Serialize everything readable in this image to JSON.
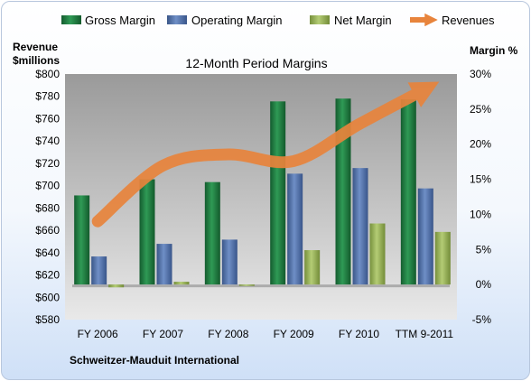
{
  "chart_data": {
    "type": "bar",
    "title": "12-Month Period Margins",
    "footer": "Schweitzer-Mauduit International",
    "categories": [
      "FY 2006",
      "FY 2007",
      "FY 2008",
      "FY 2009",
      "FY 2010",
      "TTM 9-2011"
    ],
    "y_left": {
      "label_line1": "Revenue",
      "label_line2": "$millions",
      "range": [
        580,
        800
      ],
      "ticks": [
        "$580",
        "$600",
        "$620",
        "$640",
        "$660",
        "$680",
        "$700",
        "$720",
        "$740",
        "$760",
        "$780",
        "$800"
      ]
    },
    "y_right": {
      "label": "Margin %",
      "range": [
        -5,
        30
      ],
      "ticks": [
        "-5%",
        "0%",
        "5%",
        "10%",
        "15%",
        "20%",
        "25%",
        "30%"
      ]
    },
    "legend_position": "top",
    "series": [
      {
        "name": "Gross Margin",
        "type": "bar",
        "axis": "right",
        "color": "#1e7a40",
        "values": [
          12.7,
          15.0,
          14.6,
          26.1,
          26.5,
          26.4
        ]
      },
      {
        "name": "Operating Margin",
        "type": "bar",
        "axis": "right",
        "color": "#4f6fa8",
        "values": [
          4.0,
          5.8,
          6.4,
          15.8,
          16.6,
          13.7
        ]
      },
      {
        "name": "Net Margin",
        "type": "bar",
        "axis": "right",
        "color": "#9bb65a",
        "values": [
          -0.4,
          0.4,
          -0.2,
          4.9,
          8.7,
          7.5
        ]
      },
      {
        "name": "Revenues",
        "type": "line",
        "axis": "left",
        "color": "#e8843c",
        "values": [
          668,
          718,
          728,
          722,
          755,
          786
        ]
      }
    ],
    "grid": false
  }
}
